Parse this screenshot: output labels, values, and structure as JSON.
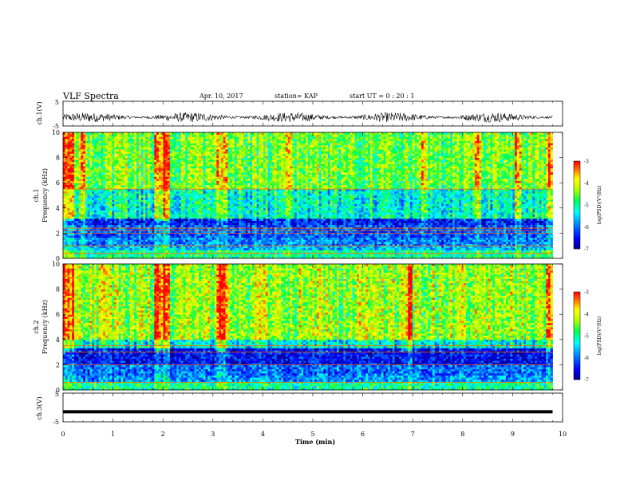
{
  "header": {
    "title": "VLF Spectra",
    "date": "Apr. 10, 2017",
    "station": "station= KAP",
    "start": "start  UT =   0 : 20 : 1"
  },
  "colorbar": {
    "label": "log(PSD)(V²/Hz)",
    "ticks": [
      "-3",
      "-4",
      "-5",
      "-6",
      "-7"
    ],
    "min": -7,
    "max": -3,
    "colors": [
      "#000000",
      "#0000ff",
      "#00aaff",
      "#00ffff",
      "#00ff00",
      "#ffff00",
      "#ff0000",
      "#ffffff"
    ]
  },
  "chart_data": [
    {
      "type": "line",
      "panel": "ch1-waveform",
      "ylabel": "ch.1(V)",
      "ylim": [
        -5,
        5
      ],
      "ytick_labels": [
        "5",
        "-5"
      ],
      "xlim": [
        0,
        10
      ],
      "description_of_series": "noisy waveform",
      "baseline": -1.5,
      "amplitude": 2.0
    },
    {
      "type": "heatmap",
      "panel": "ch1-spectrogram",
      "ylabel": "ch.1",
      "ylabel2": "Frequency (kHz)",
      "ylim": [
        0,
        10
      ],
      "ytick_labels": [
        "0",
        "2",
        "4",
        "6",
        "8",
        "10"
      ],
      "xlim": [
        0,
        10
      ],
      "value_range": [
        -7,
        -3
      ],
      "bands": [
        {
          "fmin": 0,
          "fmax": 0.6,
          "level": -5.0
        },
        {
          "fmin": 0.6,
          "fmax": 1.0,
          "level": -5.6
        },
        {
          "fmin": 1.0,
          "fmax": 1.6,
          "level": -5.9
        },
        {
          "fmin": 1.6,
          "fmax": 2.6,
          "level": -6.1
        },
        {
          "fmin": 2.6,
          "fmax": 3.2,
          "level": -6.4
        },
        {
          "fmin": 3.2,
          "fmax": 5.5,
          "level": -5.2
        },
        {
          "fmin": 5.5,
          "fmax": 10,
          "level": -4.5
        }
      ],
      "horizontal_lines_khz": [
        0.4,
        1.0,
        2.0,
        2.2,
        2.4,
        5.5
      ],
      "bright_columns_min": [
        0.05,
        0.15,
        0.35,
        1.85,
        1.97,
        2.05,
        3.1,
        3.22,
        4.5,
        7.2,
        8.3,
        9.1,
        9.7
      ]
    },
    {
      "type": "heatmap",
      "panel": "ch2-spectrogram",
      "ylabel": "ch.2",
      "ylabel2": "Frequency (kHz)",
      "ylim": [
        0,
        10
      ],
      "ytick_labels": [
        "0",
        "2",
        "4",
        "6",
        "8",
        "10"
      ],
      "xlim": [
        0,
        10
      ],
      "value_range": [
        -7,
        -3
      ],
      "bands": [
        {
          "fmin": 0,
          "fmax": 0.6,
          "level": -5.0
        },
        {
          "fmin": 0.6,
          "fmax": 1.2,
          "level": -5.8
        },
        {
          "fmin": 1.2,
          "fmax": 2.0,
          "level": -6.0
        },
        {
          "fmin": 2.0,
          "fmax": 3.4,
          "level": -6.5
        },
        {
          "fmin": 3.4,
          "fmax": 4.0,
          "level": -5.3
        },
        {
          "fmin": 4.0,
          "fmax": 10,
          "level": -4.3
        }
      ],
      "horizontal_lines_khz": [
        0.6,
        2.0,
        3.0,
        3.5
      ],
      "bright_columns_min": [
        0.05,
        0.15,
        1.85,
        1.97,
        2.05,
        3.1,
        3.2,
        6.9,
        9.7
      ]
    },
    {
      "type": "line",
      "panel": "ch3-waveform",
      "ylabel": "ch.3(V)",
      "ylim": [
        -5,
        5
      ],
      "ytick_labels": [
        "5",
        "-5"
      ],
      "xlim": [
        0,
        10
      ],
      "constant_value": -1.5,
      "xlabel": "Time (min)",
      "xtick_labels": [
        "0",
        "1",
        "2",
        "3",
        "4",
        "5",
        "6",
        "7",
        "8",
        "9",
        "10"
      ]
    }
  ]
}
